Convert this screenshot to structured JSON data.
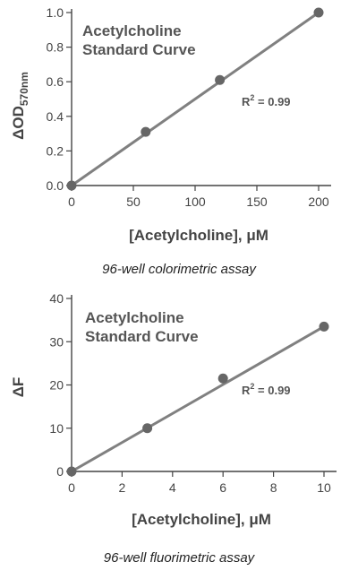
{
  "chart_data": [
    {
      "type": "scatter",
      "title": [
        "Acetylcholine",
        "Standard Curve"
      ],
      "xlabel": "[Acetylcholine], μM",
      "ylabel_main": "ΔOD",
      "ylabel_sub": "570nm",
      "caption": "96-well colorimetric assay",
      "annotation": {
        "prefix": "R",
        "sup": "2",
        "suffix": " = 0.99"
      },
      "xlim": [
        0,
        200
      ],
      "ylim": [
        0,
        1.0
      ],
      "xticks": [
        0,
        50,
        100,
        150,
        200
      ],
      "yticks": [
        0.0,
        0.2,
        0.4,
        0.6,
        0.8,
        1.0
      ],
      "xtick_labels": [
        "0",
        "50",
        "100",
        "150",
        "200"
      ],
      "ytick_labels": [
        "0.0",
        "0.2",
        "0.4",
        "0.6",
        "0.8",
        "1.0"
      ],
      "points": [
        [
          0,
          0.0
        ],
        [
          60,
          0.31
        ],
        [
          120,
          0.61
        ],
        [
          200,
          1.0
        ]
      ],
      "fit_line": [
        [
          0,
          0.0
        ],
        [
          200,
          1.0
        ]
      ],
      "grid": false,
      "colors": {
        "marker": "#666666",
        "line": "#808080",
        "axis": "#444444"
      }
    },
    {
      "type": "scatter",
      "title": [
        "Acetylcholine",
        "Standard Curve"
      ],
      "xlabel": "[Acetylcholine], μM",
      "ylabel_main": "ΔF",
      "ylabel_sub": "",
      "caption": "96-well fluorimetric assay",
      "annotation": {
        "prefix": "R",
        "sup": "2",
        "suffix": " = 0.99"
      },
      "xlim": [
        0,
        10
      ],
      "ylim": [
        0,
        40
      ],
      "xticks": [
        0,
        2,
        4,
        6,
        8,
        10
      ],
      "yticks": [
        0,
        10,
        20,
        30,
        40
      ],
      "xtick_labels": [
        "0",
        "2",
        "4",
        "6",
        "8",
        "10"
      ],
      "ytick_labels": [
        "0",
        "10",
        "20",
        "30",
        "40"
      ],
      "points": [
        [
          0,
          0
        ],
        [
          3,
          10
        ],
        [
          6,
          21.5
        ],
        [
          10,
          33.5
        ]
      ],
      "fit_line": [
        [
          0,
          0
        ],
        [
          10,
          33.5
        ]
      ],
      "grid": false,
      "colors": {
        "marker": "#666666",
        "line": "#808080",
        "axis": "#444444"
      }
    }
  ]
}
